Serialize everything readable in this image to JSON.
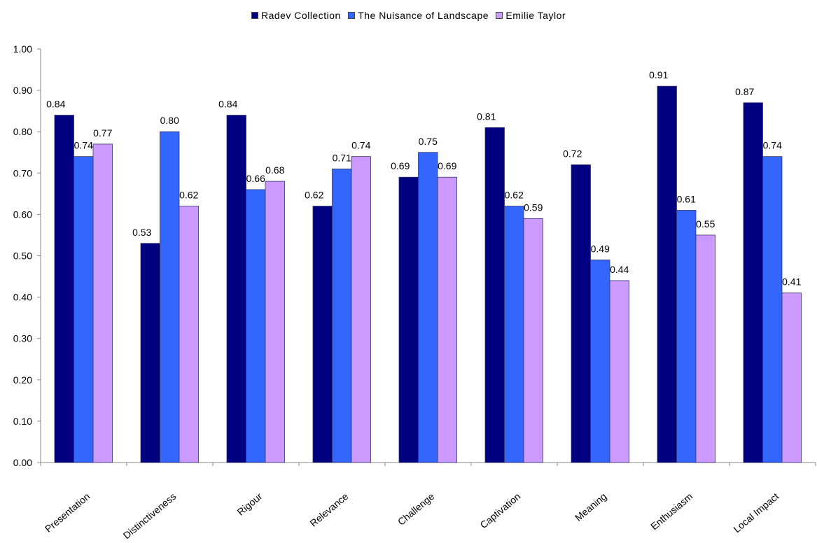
{
  "chart_data": {
    "type": "bar",
    "categories": [
      "Presentation",
      "Distinctiveness",
      "Rigour",
      "Relevance",
      "Challenge",
      "Captivation",
      "Meaning",
      "Enthusiasm",
      "Local Impact"
    ],
    "series": [
      {
        "name": "Radev Collection",
        "color": "#000080",
        "values": [
          0.84,
          0.53,
          0.84,
          0.62,
          0.69,
          0.81,
          0.72,
          0.91,
          0.87
        ]
      },
      {
        "name": "The Nuisance of Landscape",
        "color": "#3366FF",
        "values": [
          0.74,
          0.8,
          0.66,
          0.71,
          0.75,
          0.62,
          0.49,
          0.61,
          0.74
        ]
      },
      {
        "name": "Emilie Taylor",
        "color": "#CC99FF",
        "values": [
          0.77,
          0.62,
          0.68,
          0.74,
          0.69,
          0.59,
          0.44,
          0.55,
          0.41
        ]
      }
    ],
    "ylim": [
      0,
      1.0
    ],
    "yticks": [
      "0.00",
      "0.10",
      "0.20",
      "0.30",
      "0.40",
      "0.50",
      "0.60",
      "0.70",
      "0.80",
      "0.90",
      "1.00"
    ],
    "legend_position": "top-center",
    "grid": false
  }
}
